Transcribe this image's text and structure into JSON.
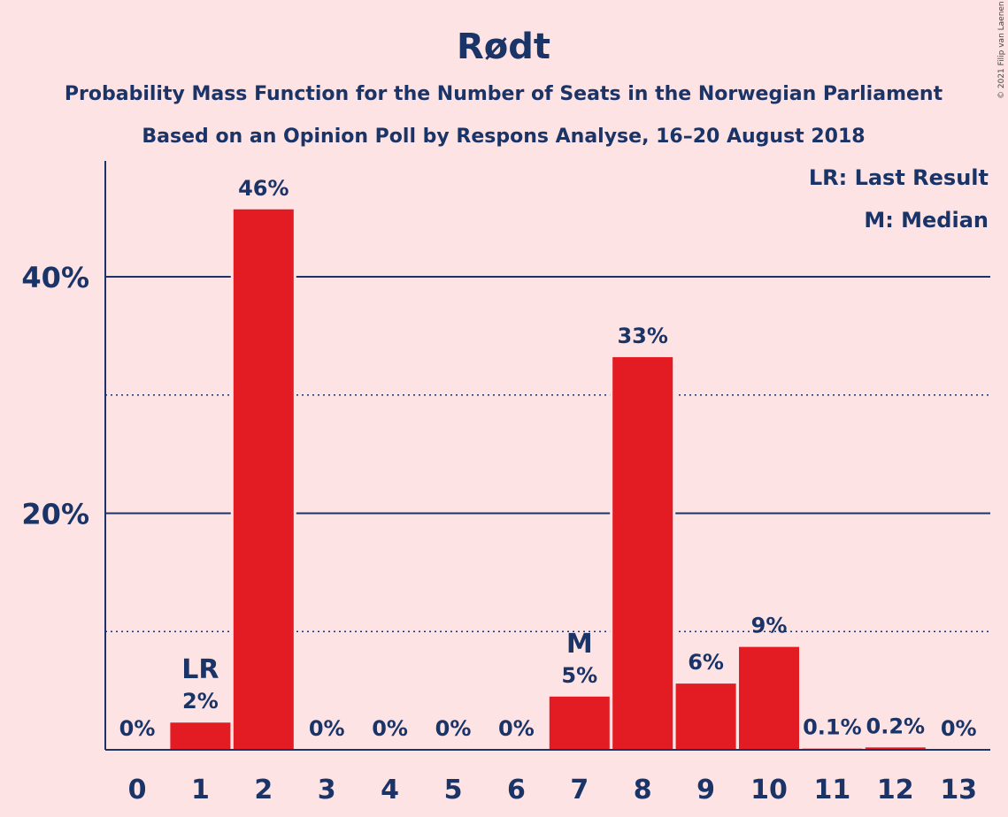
{
  "chart_data": {
    "type": "bar",
    "title": "Rødt",
    "subtitle_1": "Probability Mass Function for the Number of Seats in the Norwegian Parliament",
    "subtitle_2": "Based on an Opinion Poll by Respons Analyse, 16–20 August 2018",
    "copyright": "© 2021 Filip van Laenen",
    "legend": [
      "LR: Last Result",
      "M: Median"
    ],
    "legend_position": "top-right",
    "categories": [
      "0",
      "1",
      "2",
      "3",
      "4",
      "5",
      "6",
      "7",
      "8",
      "9",
      "10",
      "11",
      "12",
      "13"
    ],
    "values": [
      0,
      2.3,
      45.7,
      0,
      0,
      0,
      0,
      4.5,
      33.2,
      5.6,
      8.7,
      0.1,
      0.2,
      0
    ],
    "value_labels": [
      "0%",
      "2%",
      "46%",
      "0%",
      "0%",
      "0%",
      "0%",
      "5%",
      "33%",
      "6%",
      "9%",
      "0.1%",
      "0.2%",
      "0%"
    ],
    "markers": [
      {
        "category": "1",
        "label": "LR"
      },
      {
        "category": "7",
        "label": "M"
      }
    ],
    "ylim": [
      0,
      50
    ],
    "y_ticks_major": [
      {
        "value": 20,
        "label": "20%"
      },
      {
        "value": 40,
        "label": "40%"
      }
    ],
    "y_ticks_minor": [
      10,
      30
    ],
    "bar_color": "#e31b23",
    "text_color": "#1a3468",
    "background_color": "#fde3e4",
    "grid": true
  }
}
